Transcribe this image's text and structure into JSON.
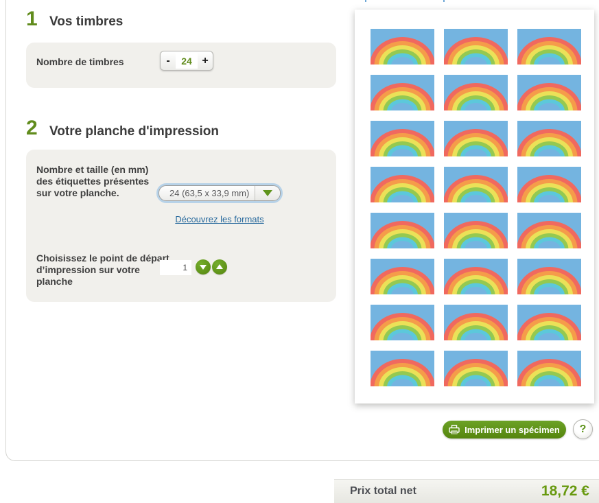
{
  "sections": {
    "one": {
      "number": "1",
      "title": "Vos timbres"
    },
    "two": {
      "number": "2",
      "title": "Votre planche d'impression"
    }
  },
  "stamps_count_field": {
    "label": "Nombre de timbres",
    "decrease": "-",
    "value": "24",
    "increase": "+"
  },
  "sheet_options": {
    "size_label": "Nombre et taille (en mm) des étiquettes présentes sur votre planche.",
    "format_selected": "24 (63,5 x 33,9 mm)",
    "formats_link": "Découvrez les formats",
    "start_label": "Choisissez le point de départ d’impression sur votre planche",
    "start_value": "1"
  },
  "sheet_preview": {
    "stamp_count": 24,
    "columns": 3,
    "rows": 8,
    "stamp_colors": {
      "sky": "#74b4e0",
      "bands": [
        "#f0695f",
        "#f59c4a",
        "#ebe158",
        "#94c951",
        "#5cc8db"
      ]
    }
  },
  "actions": {
    "print_specimen_label": "Imprimer un spécimen",
    "help_label": "?"
  },
  "price": {
    "label": "Prix total net",
    "value": "18,72 €"
  }
}
